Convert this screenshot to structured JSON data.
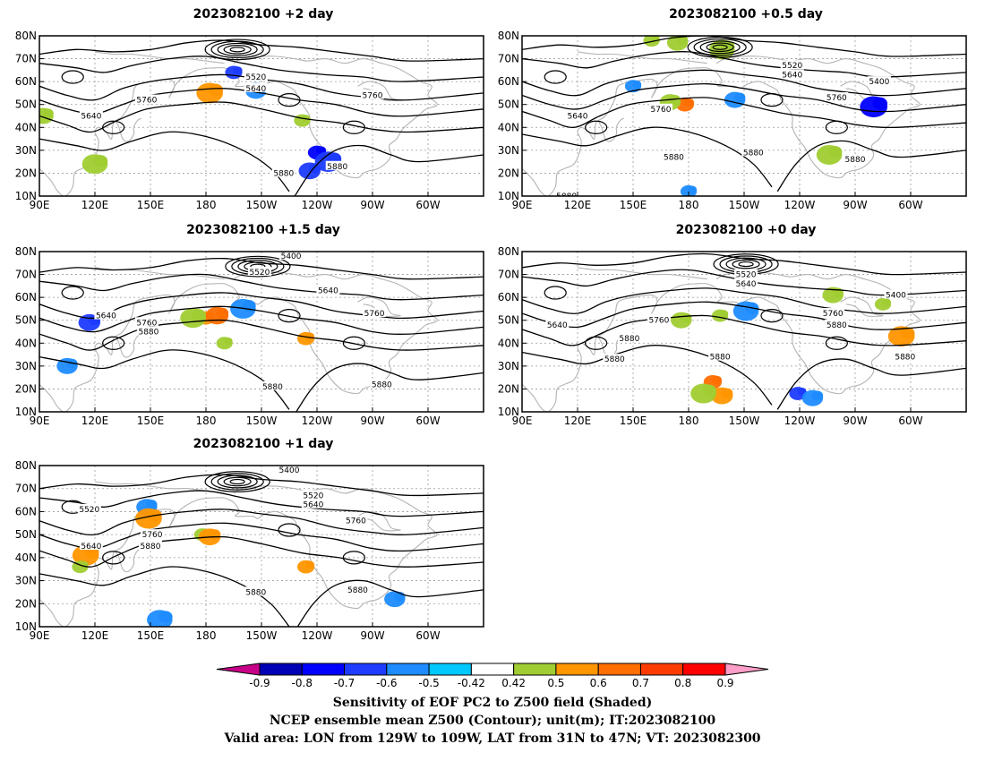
{
  "chart_data": [
    {
      "type": "contour_map",
      "title": "2023082100 +2 day",
      "lon_ticks": [
        "90E",
        "120E",
        "150E",
        "180",
        "150W",
        "120W",
        "90W",
        "60W"
      ],
      "lat_ticks": [
        "10N",
        "20N",
        "30N",
        "40N",
        "50N",
        "60N",
        "70N",
        "80N"
      ],
      "contour_labels": [
        {
          "text": "5520",
          "lon": 207,
          "lat": 62
        },
        {
          "text": "5640",
          "lon": 207,
          "lat": 57
        },
        {
          "text": "5760",
          "lon": 270,
          "lat": 54
        },
        {
          "text": "5640",
          "lon": 118,
          "lat": 45
        },
        {
          "text": "5760",
          "lon": 148,
          "lat": 52
        },
        {
          "text": "5880",
          "lon": 222,
          "lat": 20
        },
        {
          "text": "5880",
          "lon": 251,
          "lat": 23
        }
      ],
      "shaded": [
        {
          "lon": 240,
          "lat": 29,
          "v": -0.7
        },
        {
          "lon": 236,
          "lat": 21,
          "v": -0.6
        },
        {
          "lon": 246,
          "lat": 25,
          "v": -0.6
        },
        {
          "lon": 195,
          "lat": 64,
          "v": -0.6
        },
        {
          "lon": 207,
          "lat": 56,
          "v": -0.5
        },
        {
          "lon": 182,
          "lat": 55,
          "v": 0.6
        },
        {
          "lon": 232,
          "lat": 43,
          "v": 0.5
        },
        {
          "lon": 92,
          "lat": 45,
          "v": 0.5
        },
        {
          "lon": 120,
          "lat": 24,
          "v": 0.5
        }
      ]
    },
    {
      "type": "contour_map",
      "title": "2023082100 +0.5 day",
      "lon_ticks": [
        "90E",
        "120E",
        "150E",
        "180",
        "150W",
        "120W",
        "90W",
        "60W"
      ],
      "lat_ticks": [
        "10N",
        "20N",
        "30N",
        "40N",
        "50N",
        "60N",
        "70N",
        "80N"
      ],
      "contour_labels": [
        {
          "text": "5520",
          "lon": 236,
          "lat": 67
        },
        {
          "text": "5640",
          "lon": 236,
          "lat": 63
        },
        {
          "text": "5400",
          "lon": 283,
          "lat": 60
        },
        {
          "text": "5760",
          "lon": 260,
          "lat": 53
        },
        {
          "text": "5760",
          "lon": 165,
          "lat": 48
        },
        {
          "text": "5640",
          "lon": 120,
          "lat": 45
        },
        {
          "text": "5880",
          "lon": 172,
          "lat": 27
        },
        {
          "text": "5880",
          "lon": 215,
          "lat": 29
        },
        {
          "text": "5880",
          "lon": 270,
          "lat": 26
        },
        {
          "text": "5880",
          "lon": 114,
          "lat": 10
        }
      ],
      "shaded": [
        {
          "lon": 178,
          "lat": 50,
          "v": 0.7
        },
        {
          "lon": 170,
          "lat": 51,
          "v": 0.5
        },
        {
          "lon": 280,
          "lat": 49,
          "v": -0.7
        },
        {
          "lon": 160,
          "lat": 78,
          "v": 0.5
        },
        {
          "lon": 174,
          "lat": 77,
          "v": 0.5
        },
        {
          "lon": 198,
          "lat": 74,
          "v": 0.5
        },
        {
          "lon": 150,
          "lat": 58,
          "v": -0.5
        },
        {
          "lon": 205,
          "lat": 52,
          "v": -0.5
        },
        {
          "lon": 256,
          "lat": 28,
          "v": 0.5
        },
        {
          "lon": 180,
          "lat": 12,
          "v": -0.5
        }
      ]
    },
    {
      "type": "contour_map",
      "title": "2023082100 +1.5 day",
      "lon_ticks": [
        "90E",
        "120E",
        "150E",
        "180",
        "150W",
        "120W",
        "90W",
        "60W"
      ],
      "lat_ticks": [
        "10N",
        "20N",
        "30N",
        "40N",
        "50N",
        "60N",
        "70N",
        "80N"
      ],
      "contour_labels": [
        {
          "text": "5400",
          "lon": 226,
          "lat": 78
        },
        {
          "text": "5520",
          "lon": 209,
          "lat": 71
        },
        {
          "text": "5640",
          "lon": 246,
          "lat": 63
        },
        {
          "text": "5760",
          "lon": 271,
          "lat": 53
        },
        {
          "text": "5640",
          "lon": 126,
          "lat": 52
        },
        {
          "text": "5760",
          "lon": 148,
          "lat": 49
        },
        {
          "text": "5880",
          "lon": 149,
          "lat": 45
        },
        {
          "text": "5880",
          "lon": 216,
          "lat": 21
        },
        {
          "text": "5880",
          "lon": 275,
          "lat": 22
        }
      ],
      "shaded": [
        {
          "lon": 180,
          "lat": 51,
          "v": 0.6
        },
        {
          "lon": 186,
          "lat": 52,
          "v": 0.7
        },
        {
          "lon": 173,
          "lat": 51,
          "v": 0.5
        },
        {
          "lon": 234,
          "lat": 42,
          "v": 0.6
        },
        {
          "lon": 117,
          "lat": 49,
          "v": -0.6
        },
        {
          "lon": 200,
          "lat": 55,
          "v": -0.5
        },
        {
          "lon": 190,
          "lat": 40,
          "v": 0.5
        },
        {
          "lon": 105,
          "lat": 30,
          "v": -0.5
        }
      ]
    },
    {
      "type": "contour_map",
      "title": "2023082100 +0 day",
      "lon_ticks": [
        "90E",
        "120E",
        "150E",
        "180",
        "150W",
        "120W",
        "90W",
        "60W"
      ],
      "lat_ticks": [
        "10N",
        "20N",
        "30N",
        "40N",
        "50N",
        "60N",
        "70N",
        "80N"
      ],
      "contour_labels": [
        {
          "text": "5520",
          "lon": 211,
          "lat": 70
        },
        {
          "text": "5640",
          "lon": 211,
          "lat": 66
        },
        {
          "text": "5400",
          "lon": 292,
          "lat": 61
        },
        {
          "text": "5760",
          "lon": 258,
          "lat": 53
        },
        {
          "text": "5880",
          "lon": 260,
          "lat": 48
        },
        {
          "text": "5640",
          "lon": 109,
          "lat": 48
        },
        {
          "text": "5760",
          "lon": 164,
          "lat": 50
        },
        {
          "text": "5880",
          "lon": 148,
          "lat": 42
        },
        {
          "text": "5880",
          "lon": 140,
          "lat": 33
        },
        {
          "text": "5880",
          "lon": 197,
          "lat": 34
        },
        {
          "text": "5880",
          "lon": 297,
          "lat": 34
        }
      ],
      "shaded": [
        {
          "lon": 193,
          "lat": 23,
          "v": 0.7
        },
        {
          "lon": 198,
          "lat": 17,
          "v": 0.6
        },
        {
          "lon": 188,
          "lat": 18,
          "v": 0.5
        },
        {
          "lon": 239,
          "lat": 18,
          "v": -0.6
        },
        {
          "lon": 247,
          "lat": 16,
          "v": -0.5
        },
        {
          "lon": 295,
          "lat": 43,
          "v": 0.6
        },
        {
          "lon": 197,
          "lat": 52,
          "v": 0.5
        },
        {
          "lon": 176,
          "lat": 50,
          "v": 0.5
        },
        {
          "lon": 211,
          "lat": 54,
          "v": -0.5
        },
        {
          "lon": 285,
          "lat": 57,
          "v": 0.5
        },
        {
          "lon": 258,
          "lat": 61,
          "v": 0.5
        }
      ]
    },
    {
      "type": "contour_map",
      "title": "2023082100 +1 day",
      "lon_ticks": [
        "90E",
        "120E",
        "150E",
        "180",
        "150W",
        "120W",
        "90W",
        "60W"
      ],
      "lat_ticks": [
        "10N",
        "20N",
        "30N",
        "40N",
        "50N",
        "60N",
        "70N",
        "80N"
      ],
      "contour_labels": [
        {
          "text": "5400",
          "lon": 225,
          "lat": 78
        },
        {
          "text": "5520",
          "lon": 117,
          "lat": 61
        },
        {
          "text": "5520",
          "lon": 238,
          "lat": 67
        },
        {
          "text": "5640",
          "lon": 238,
          "lat": 63
        },
        {
          "text": "5760",
          "lon": 261,
          "lat": 56
        },
        {
          "text": "5640",
          "lon": 118,
          "lat": 45
        },
        {
          "text": "5760",
          "lon": 151,
          "lat": 50
        },
        {
          "text": "5880",
          "lon": 150,
          "lat": 45
        },
        {
          "text": "5880",
          "lon": 207,
          "lat": 25
        },
        {
          "text": "5880",
          "lon": 262,
          "lat": 26
        }
      ],
      "shaded": [
        {
          "lon": 178,
          "lat": 50,
          "v": 0.5
        },
        {
          "lon": 182,
          "lat": 49,
          "v": 0.6
        },
        {
          "lon": 115,
          "lat": 41,
          "v": 0.6
        },
        {
          "lon": 112,
          "lat": 36,
          "v": 0.5
        },
        {
          "lon": 148,
          "lat": 62,
          "v": -0.5
        },
        {
          "lon": 149,
          "lat": 57,
          "v": 0.6
        },
        {
          "lon": 234,
          "lat": 36,
          "v": 0.6
        },
        {
          "lon": 282,
          "lat": 22,
          "v": -0.5
        },
        {
          "lon": 155,
          "lat": 13,
          "v": -0.5
        }
      ]
    }
  ],
  "colorbar": {
    "labels": [
      "-0.9",
      "-0.8",
      "-0.7",
      "-0.6",
      "-0.5",
      "-0.42",
      "0.42",
      "0.5",
      "0.6",
      "0.7",
      "0.8",
      "0.9"
    ],
    "colors": [
      "#c80088",
      "#0000b4",
      "#0000ff",
      "#1e3cff",
      "#1e8cff",
      "#00c8ff",
      "#ffffff",
      "#a0cd32",
      "#ff9600",
      "#ff6e00",
      "#ff3c00",
      "#ff0000",
      "#ff9ec8"
    ]
  },
  "footer": {
    "line1": "Sensitivity of EOF PC2 to Z500 field (Shaded)",
    "line2": "NCEP ensemble mean Z500 (Contour); unit(m); IT:2023082100",
    "line3": "Valid area: LON from 129W to 109W, LAT from 31N to 47N; VT: 2023082300"
  }
}
